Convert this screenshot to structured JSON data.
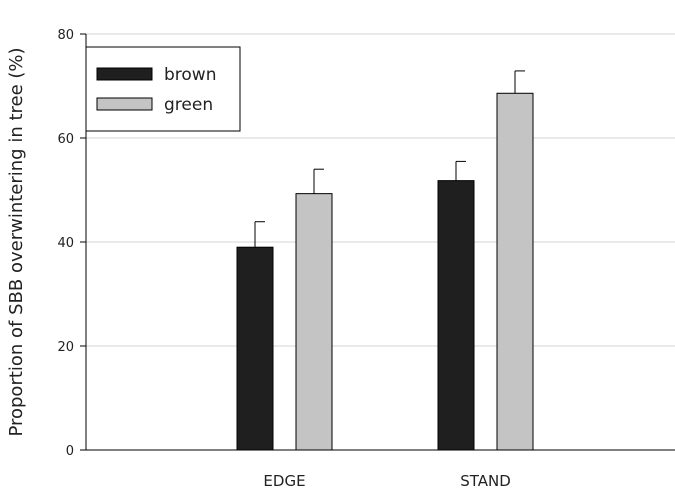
{
  "chart_data": {
    "type": "bar",
    "title": "",
    "xlabel": "",
    "ylabel": "Proportion of SBB overwintering in tree (%)",
    "categories": [
      "EDGE",
      "STAND"
    ],
    "series": [
      {
        "name": "brown",
        "color": "#1f1f1f",
        "values": [
          39.0,
          51.8
        ],
        "errors": [
          4.9,
          3.7
        ]
      },
      {
        "name": "green",
        "color": "#c4c4c4",
        "values": [
          49.3,
          68.6
        ],
        "errors": [
          4.7,
          4.3
        ]
      }
    ],
    "ylim": [
      0,
      80
    ],
    "yticks": [
      0,
      20,
      40,
      60,
      80
    ],
    "grid": true,
    "legend_position": "top-left"
  }
}
